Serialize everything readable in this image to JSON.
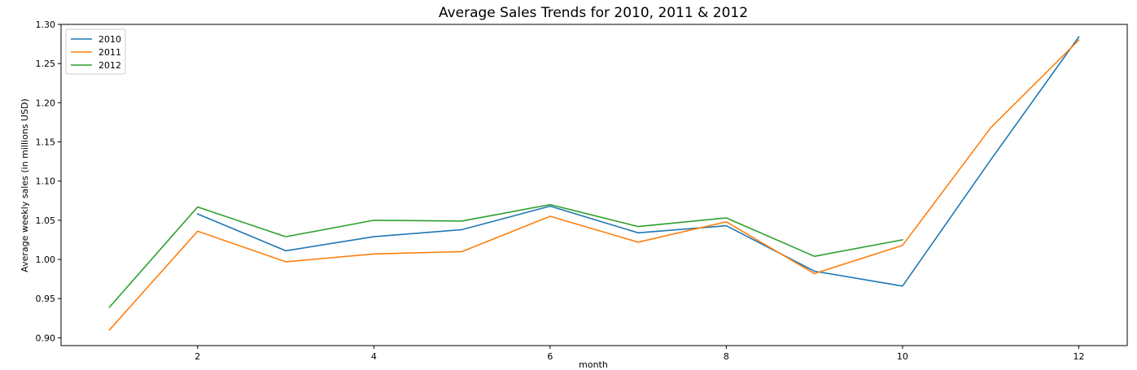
{
  "chart_data": {
    "type": "line",
    "title": "Average Sales Trends for 2010, 2011 & 2012",
    "xlabel": "month",
    "ylabel": "Average weekly sales (in millions USD)",
    "xlim": [
      0.45,
      12.55
    ],
    "ylim": [
      0.89,
      1.3
    ],
    "x_ticks": [
      2,
      4,
      6,
      8,
      10,
      12
    ],
    "y_ticks": [
      0.9,
      0.95,
      1.0,
      1.05,
      1.1,
      1.15,
      1.2,
      1.25,
      1.3
    ],
    "legend": "upper-left",
    "grid": false,
    "series": [
      {
        "name": "2010",
        "color": "#1f77b4",
        "x": [
          2,
          3,
          4,
          5,
          6,
          7,
          8,
          9,
          10,
          11,
          12
        ],
        "y": [
          1.058,
          1.011,
          1.029,
          1.038,
          1.068,
          1.034,
          1.043,
          0.985,
          0.966,
          1.127,
          1.284
        ]
      },
      {
        "name": "2011",
        "color": "#ff7f0e",
        "x": [
          1,
          2,
          3,
          4,
          5,
          6,
          7,
          8,
          9,
          10,
          11,
          12
        ],
        "y": [
          0.91,
          1.036,
          0.997,
          1.007,
          1.01,
          1.055,
          1.022,
          1.048,
          0.982,
          1.018,
          1.168,
          1.28
        ]
      },
      {
        "name": "2012",
        "color": "#2ca02c",
        "x": [
          1,
          2,
          3,
          4,
          5,
          6,
          7,
          8,
          9,
          10
        ],
        "y": [
          0.939,
          1.067,
          1.029,
          1.05,
          1.049,
          1.07,
          1.042,
          1.053,
          1.004,
          1.025
        ]
      }
    ]
  }
}
